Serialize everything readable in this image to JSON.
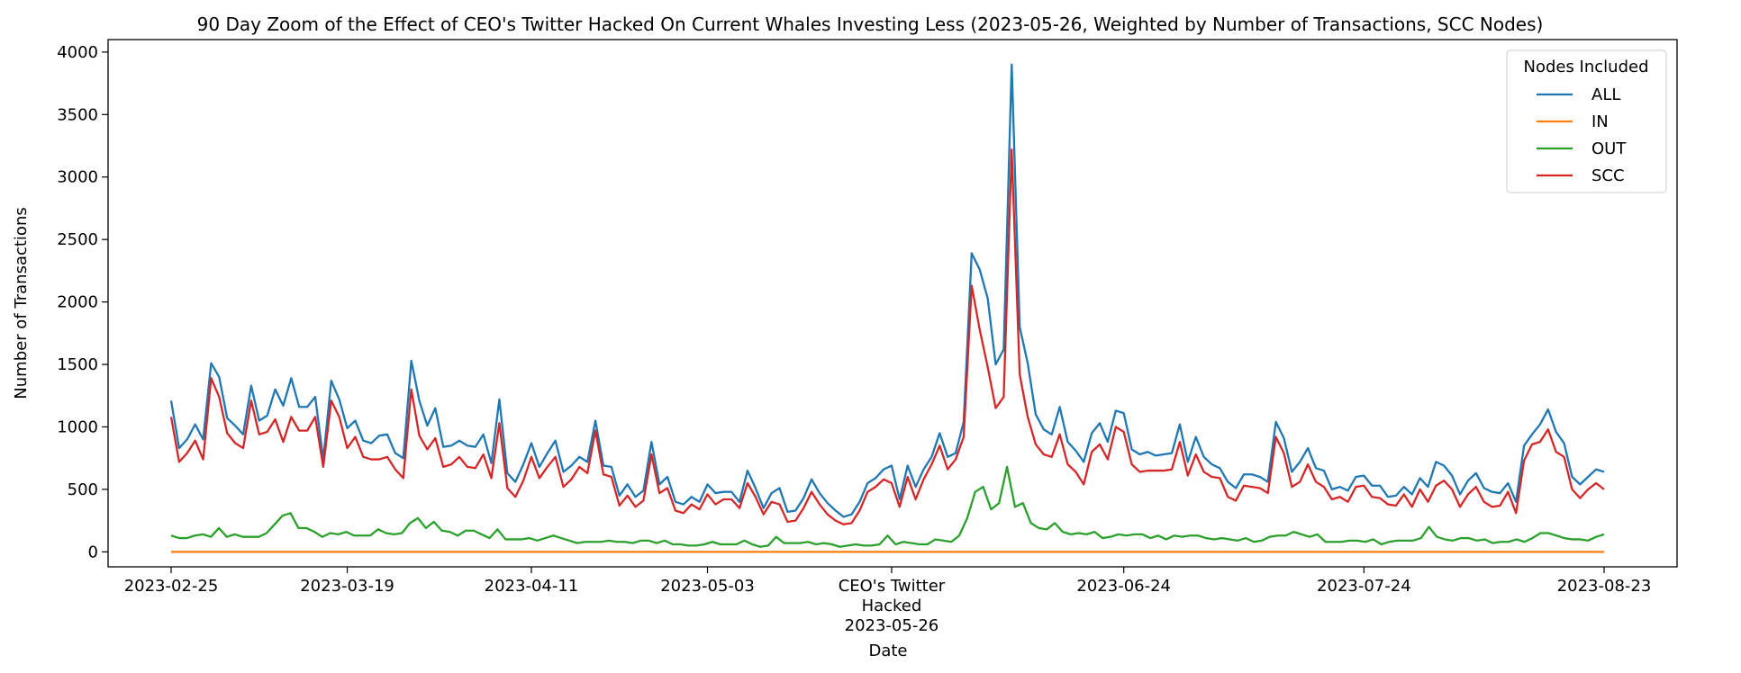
{
  "chart_data": {
    "type": "line",
    "title": "90 Day Zoom of the Effect of CEO's Twitter Hacked On Current Whales Investing Less (2023-05-26, Weighted by Number of Transactions, SCC Nodes)",
    "xlabel": "Date",
    "ylabel": "Number of Transactions",
    "ylim": [
      -120,
      4100
    ],
    "yticks": [
      0,
      500,
      1000,
      1500,
      2000,
      2500,
      3000,
      3500,
      4000
    ],
    "x_start": "2023-02-25",
    "x_end": "2023-08-23",
    "xticks": [
      {
        "date": "2023-02-25",
        "label": "2023-02-25"
      },
      {
        "date": "2023-03-19",
        "label": "2023-03-19"
      },
      {
        "date": "2023-04-11",
        "label": "2023-04-11"
      },
      {
        "date": "2023-05-03",
        "label": "2023-05-03"
      },
      {
        "date": "2023-05-26",
        "label": "CEO's Twitter\nHacked\n2023-05-26"
      },
      {
        "date": "2023-06-24",
        "label": "2023-06-24"
      },
      {
        "date": "2023-07-24",
        "label": "2023-07-24"
      },
      {
        "date": "2023-08-23",
        "label": "2023-08-23"
      }
    ],
    "grid": false,
    "legend": {
      "title": "Nodes Included",
      "placement": "top-right"
    },
    "series": [
      {
        "name": "ALL",
        "color": "#1f77b4",
        "values": [
          1210,
          830,
          900,
          1020,
          900,
          1510,
          1400,
          1070,
          1010,
          940,
          1330,
          1050,
          1090,
          1300,
          1170,
          1390,
          1160,
          1160,
          1240,
          740,
          1370,
          1220,
          990,
          1050,
          890,
          870,
          930,
          940,
          790,
          750,
          1530,
          1210,
          1010,
          1150,
          840,
          850,
          890,
          850,
          840,
          940,
          710,
          1220,
          630,
          560,
          700,
          870,
          680,
          790,
          890,
          640,
          690,
          760,
          720,
          1050,
          690,
          680,
          450,
          540,
          440,
          490,
          880,
          540,
          600,
          400,
          380,
          440,
          400,
          540,
          470,
          480,
          480,
          400,
          650,
          510,
          350,
          470,
          510,
          320,
          330,
          430,
          580,
          470,
          390,
          330,
          280,
          300,
          400,
          550,
          590,
          660,
          690,
          420,
          690,
          520,
          660,
          760,
          950,
          760,
          790,
          1040,
          2390,
          2260,
          2030,
          1500,
          1620,
          3900,
          1800,
          1510,
          1100,
          980,
          940,
          1160,
          880,
          810,
          720,
          950,
          1030,
          880,
          1130,
          1110,
          820,
          780,
          800,
          770,
          780,
          790,
          1020,
          720,
          920,
          760,
          700,
          670,
          560,
          510,
          620,
          620,
          600,
          560,
          1040,
          910,
          640,
          720,
          830,
          670,
          650,
          500,
          520,
          490,
          600,
          610,
          530,
          530,
          440,
          450,
          520,
          460,
          590,
          520,
          720,
          690,
          610,
          460,
          570,
          630,
          510,
          480,
          470,
          550,
          400,
          850,
          940,
          1020,
          1140,
          960,
          870,
          600,
          540,
          600,
          660,
          640
        ]
      },
      {
        "name": "IN",
        "color": "#ff7f0e",
        "values": [
          0,
          0,
          0,
          0,
          0,
          0,
          0,
          0,
          0,
          0,
          0,
          0,
          0,
          0,
          0,
          0,
          0,
          0,
          0,
          0,
          0,
          0,
          0,
          0,
          0,
          0,
          0,
          0,
          0,
          0,
          0,
          0,
          0,
          0,
          0,
          0,
          0,
          0,
          0,
          0,
          0,
          0,
          0,
          0,
          0,
          0,
          0,
          0,
          0,
          0,
          0,
          0,
          0,
          0,
          0,
          0,
          0,
          0,
          0,
          0,
          0,
          0,
          0,
          0,
          0,
          0,
          0,
          0,
          0,
          0,
          0,
          0,
          0,
          0,
          0,
          0,
          0,
          0,
          0,
          0,
          0,
          0,
          0,
          0,
          0,
          0,
          0,
          0,
          0,
          0,
          0,
          0,
          0,
          0,
          0,
          0,
          0,
          0,
          0,
          0,
          0,
          0,
          0,
          0,
          0,
          0,
          0,
          0,
          0,
          0,
          0,
          0,
          0,
          0,
          0,
          0,
          0,
          0,
          0,
          0,
          0,
          0,
          0,
          0,
          0,
          0,
          0,
          0,
          0,
          0,
          0,
          0,
          0,
          0,
          0,
          0,
          0,
          0,
          0,
          0,
          0,
          0,
          0,
          0,
          0,
          0,
          0,
          0,
          0,
          0,
          0,
          0,
          0,
          0,
          0,
          0,
          0,
          0,
          0,
          0,
          0,
          0,
          0,
          0,
          0,
          0,
          0,
          0,
          0,
          0,
          0,
          0,
          0,
          0,
          0,
          0,
          0,
          0,
          0,
          0,
          0,
          0
        ]
      },
      {
        "name": "OUT",
        "color": "#2ca02c",
        "values": [
          130,
          110,
          110,
          130,
          140,
          120,
          190,
          120,
          140,
          120,
          120,
          120,
          150,
          220,
          290,
          310,
          190,
          190,
          160,
          120,
          150,
          140,
          160,
          130,
          130,
          130,
          180,
          150,
          140,
          150,
          230,
          270,
          190,
          240,
          170,
          160,
          130,
          170,
          170,
          140,
          110,
          180,
          100,
          100,
          100,
          110,
          90,
          110,
          130,
          110,
          90,
          70,
          80,
          80,
          80,
          90,
          80,
          80,
          70,
          90,
          90,
          70,
          90,
          60,
          60,
          50,
          50,
          60,
          80,
          60,
          60,
          60,
          90,
          60,
          40,
          50,
          120,
          70,
          70,
          70,
          80,
          60,
          70,
          60,
          40,
          50,
          60,
          50,
          50,
          60,
          130,
          60,
          80,
          70,
          60,
          60,
          100,
          90,
          80,
          130,
          270,
          480,
          520,
          340,
          390,
          680,
          360,
          390,
          230,
          190,
          180,
          230,
          160,
          140,
          150,
          140,
          160,
          110,
          120,
          140,
          130,
          140,
          140,
          110,
          130,
          100,
          130,
          120,
          130,
          130,
          110,
          100,
          110,
          100,
          90,
          110,
          80,
          90,
          120,
          130,
          130,
          160,
          140,
          120,
          140,
          80,
          80,
          80,
          90,
          90,
          80,
          100,
          60,
          80,
          90,
          90,
          90,
          110,
          200,
          120,
          100,
          90,
          110,
          110,
          90,
          100,
          70,
          80,
          80,
          100,
          80,
          110,
          150,
          150,
          130,
          110,
          100,
          100,
          90,
          120,
          140
        ]
      },
      {
        "name": "SCC",
        "color": "#d62728",
        "values": [
          1080,
          720,
          790,
          890,
          740,
          1390,
          1240,
          950,
          870,
          830,
          1210,
          940,
          960,
          1060,
          880,
          1080,
          970,
          970,
          1080,
          680,
          1210,
          1080,
          830,
          920,
          760,
          740,
          740,
          760,
          660,
          590,
          1300,
          930,
          820,
          910,
          680,
          700,
          760,
          680,
          670,
          780,
          590,
          1030,
          510,
          440,
          570,
          760,
          590,
          680,
          760,
          520,
          580,
          680,
          630,
          970,
          620,
          600,
          370,
          450,
          360,
          410,
          780,
          470,
          510,
          330,
          310,
          380,
          340,
          460,
          380,
          420,
          420,
          350,
          550,
          440,
          300,
          400,
          380,
          240,
          250,
          350,
          480,
          380,
          300,
          250,
          220,
          230,
          330,
          480,
          520,
          580,
          550,
          360,
          600,
          420,
          580,
          700,
          850,
          660,
          740,
          920,
          2130,
          1780,
          1480,
          1150,
          1240,
          3220,
          1420,
          1080,
          860,
          780,
          760,
          940,
          700,
          640,
          540,
          800,
          860,
          740,
          1000,
          960,
          700,
          640,
          650,
          650,
          650,
          660,
          880,
          610,
          780,
          640,
          600,
          590,
          440,
          410,
          530,
          520,
          510,
          470,
          920,
          790,
          520,
          560,
          700,
          560,
          520,
          420,
          440,
          400,
          520,
          530,
          440,
          430,
          380,
          370,
          460,
          360,
          500,
          400,
          530,
          570,
          500,
          360,
          460,
          520,
          400,
          360,
          370,
          480,
          310,
          730,
          860,
          880,
          980,
          800,
          760,
          500,
          430,
          500,
          550,
          500
        ]
      }
    ],
    "annotation": {
      "date": "2023-05-26",
      "label": "CEO's Twitter Hacked"
    }
  }
}
